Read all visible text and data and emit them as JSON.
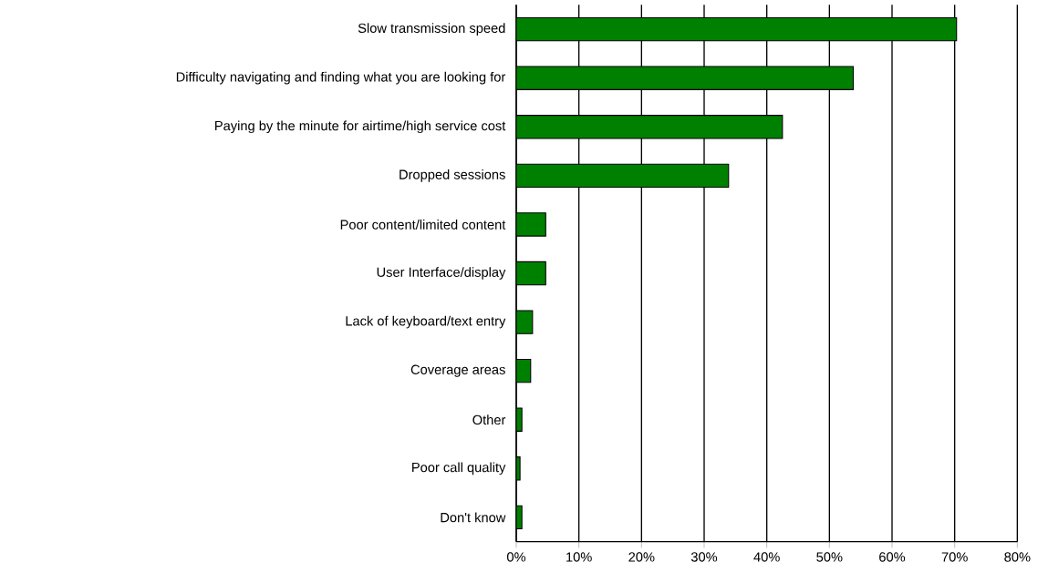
{
  "chart_data": {
    "type": "bar",
    "orientation": "horizontal",
    "categories": [
      "Slow transmission speed",
      "Difficulty navigating and finding what you are looking for",
      "Paying by the minute for airtime/high service cost",
      "Dropped sessions",
      "Poor content/limited content",
      "User Interface/display",
      "Lack of keyboard/text entry",
      "Coverage areas",
      "Other",
      "Poor call quality",
      "Don't know"
    ],
    "values": [
      70.3,
      53.8,
      42.5,
      33.9,
      4.7,
      4.7,
      2.6,
      2.3,
      0.9,
      0.6,
      0.9
    ],
    "color": "#008000",
    "xlim": [
      0,
      80
    ],
    "xticks": [
      {
        "value": 0,
        "label": "0%"
      },
      {
        "value": 10,
        "label": "10%"
      },
      {
        "value": 20,
        "label": "20%"
      },
      {
        "value": 30,
        "label": "30%"
      },
      {
        "value": 40,
        "label": "40%"
      },
      {
        "value": 50,
        "label": "50%"
      },
      {
        "value": 60,
        "label": "60%"
      },
      {
        "value": 70,
        "label": "70%"
      },
      {
        "value": 80,
        "label": "80%"
      }
    ],
    "grid": "x"
  }
}
